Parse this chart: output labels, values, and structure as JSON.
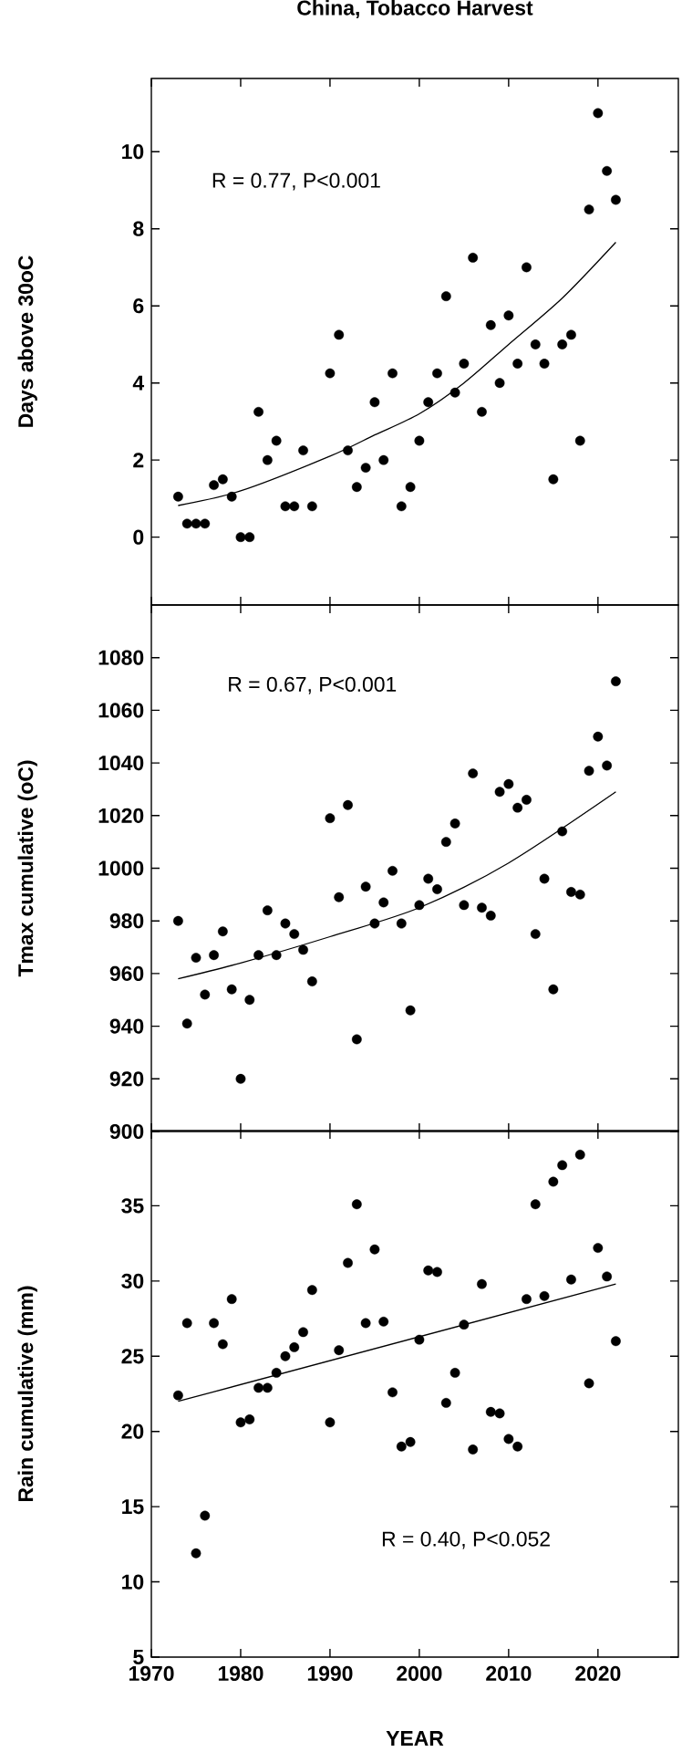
{
  "chart_data": [
    {
      "type": "scatter",
      "title": "China, Tobacco Harvest",
      "ylabel": "Days above 30oC",
      "annotations": [
        "R = 0.77, P<0.001"
      ],
      "tick_labels": "y",
      "xlim": [
        1970,
        2029
      ],
      "ylim": [
        -1.76,
        11.9
      ],
      "xticks": [
        1970,
        1980,
        1990,
        2000,
        2010,
        2020
      ],
      "yticks": [
        0,
        2,
        4,
        6,
        8,
        10
      ],
      "x": [
        1973,
        1974,
        1975,
        1976,
        1977,
        1978,
        1979,
        1980,
        1981,
        1982,
        1983,
        1984,
        1985,
        1986,
        1987,
        1988,
        1990,
        1991,
        1992,
        1993,
        1994,
        1995,
        1996,
        1997,
        1998,
        1999,
        2000,
        2001,
        2002,
        2003,
        2004,
        2005,
        2006,
        2007,
        2008,
        2009,
        2010,
        2011,
        2012,
        2013,
        2014,
        2015,
        2016,
        2017,
        2018,
        2019,
        2020,
        2021,
        2022
      ],
      "series": [
        {
          "marker": "circle",
          "color": "#000000",
          "values": [
            1.05,
            0.35,
            0.35,
            0.35,
            1.35,
            1.5,
            1.05,
            0,
            0,
            3.25,
            2.0,
            2.5,
            0.8,
            0.8,
            2.25,
            0.8,
            4.25,
            5.25,
            2.25,
            1.3,
            1.8,
            3.5,
            2.0,
            4.25,
            0.8,
            1.3,
            2.5,
            3.5,
            4.25,
            6.25,
            3.75,
            4.5,
            7.25,
            3.25,
            5.5,
            4.0,
            5.75,
            4.5,
            7.0,
            5.0,
            4.5,
            1.5,
            5.0,
            5.25,
            2.5,
            8.5,
            11.0,
            9.5,
            8.75
          ]
        },
        {
          "type": "line",
          "marker": "none",
          "color": "#000000",
          "x": [
            1973,
            1980,
            1990,
            1995,
            2000,
            2005,
            2010,
            2016,
            2022
          ],
          "values": [
            0.82,
            1.2,
            2.1,
            2.65,
            3.2,
            4.0,
            5.0,
            6.2,
            7.65
          ]
        }
      ]
    },
    {
      "type": "scatter",
      "ylabel": "Tmax cumulative (oC)",
      "annotations": [
        "R = 0.67, P<0.001"
      ],
      "tick_labels": "y",
      "xlim": [
        1970,
        2029
      ],
      "ylim": [
        900,
        1100
      ],
      "xticks": [
        1970,
        1980,
        1990,
        2000,
        2010,
        2020
      ],
      "yticks": [
        900,
        920,
        940,
        960,
        980,
        1000,
        1020,
        1040,
        1060,
        1080
      ],
      "x": [
        1973,
        1974,
        1975,
        1976,
        1977,
        1978,
        1979,
        1980,
        1981,
        1982,
        1983,
        1984,
        1985,
        1986,
        1987,
        1988,
        1990,
        1991,
        1992,
        1993,
        1994,
        1995,
        1996,
        1997,
        1998,
        1999,
        2000,
        2001,
        2002,
        2003,
        2004,
        2005,
        2006,
        2007,
        2008,
        2009,
        2010,
        2011,
        2012,
        2013,
        2014,
        2015,
        2016,
        2017,
        2018,
        2019,
        2020,
        2021,
        2022
      ],
      "series": [
        {
          "marker": "circle",
          "color": "#000000",
          "values": [
            980,
            941,
            966,
            952,
            967,
            976,
            954,
            920,
            950,
            967,
            984,
            967,
            979,
            975,
            969,
            957,
            1019,
            989,
            1024,
            935,
            993,
            979,
            987,
            999,
            979,
            946,
            986,
            996,
            992,
            1010,
            1017,
            986,
            1036,
            985,
            982,
            1029,
            1032,
            1023,
            1026,
            975,
            996,
            954,
            1014,
            991,
            990,
            1037,
            1050,
            1039,
            1071
          ]
        },
        {
          "type": "line",
          "marker": "none",
          "color": "#000000",
          "x": [
            1973,
            1980,
            1990,
            2000,
            2010,
            2022
          ],
          "values": [
            958,
            964,
            974,
            985,
            1002,
            1029
          ]
        }
      ]
    },
    {
      "type": "scatter",
      "ylabel": "Rain cumulative (mm)",
      "xlabel": "YEAR",
      "annotations": [
        "R = 0.40, P<0.052"
      ],
      "xlim": [
        1970,
        2029
      ],
      "ylim": [
        5,
        40
      ],
      "xticks": [
        1970,
        1980,
        1990,
        2000,
        2010,
        2020
      ],
      "yticks": [
        5,
        10,
        15,
        20,
        25,
        30,
        35
      ],
      "x": [
        1973,
        1974,
        1975,
        1976,
        1977,
        1978,
        1979,
        1980,
        1981,
        1982,
        1983,
        1984,
        1985,
        1986,
        1987,
        1988,
        1990,
        1991,
        1992,
        1993,
        1994,
        1995,
        1996,
        1997,
        1998,
        1999,
        2000,
        2001,
        2002,
        2003,
        2004,
        2005,
        2006,
        2007,
        2008,
        2009,
        2010,
        2011,
        2012,
        2013,
        2014,
        2015,
        2016,
        2017,
        2018,
        2019,
        2020,
        2021,
        2022
      ],
      "series": [
        {
          "marker": "circle",
          "color": "#000000",
          "values": [
            22.4,
            27.2,
            11.9,
            14.4,
            27.2,
            25.8,
            28.8,
            20.6,
            20.8,
            22.9,
            22.9,
            23.9,
            25.0,
            25.6,
            26.6,
            29.4,
            20.6,
            25.4,
            31.2,
            35.1,
            27.2,
            32.1,
            27.3,
            22.6,
            19.0,
            19.3,
            26.1,
            30.7,
            30.6,
            21.9,
            23.9,
            27.1,
            18.8,
            29.8,
            21.3,
            21.2,
            19.5,
            19.0,
            28.8,
            35.1,
            29.0,
            36.6,
            37.7,
            30.1,
            38.4,
            23.2,
            32.2,
            30.3,
            26.0
          ]
        },
        {
          "type": "line",
          "marker": "none",
          "color": "#000000",
          "x": [
            1973,
            2022
          ],
          "values": [
            22.0,
            29.8
          ]
        }
      ]
    }
  ]
}
